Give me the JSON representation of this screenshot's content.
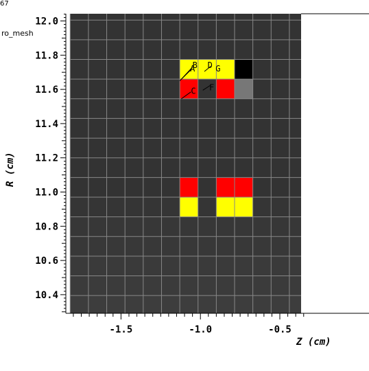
{
  "header": {
    "corner_number": "67",
    "mesh_label": "ro_mesh"
  },
  "chart_data": {
    "type": "heatmap",
    "title": "",
    "xlabel": "Z (cm)",
    "ylabel": "R (cm)",
    "xlim": [
      -1.835,
      -0.325
    ],
    "ylim": [
      10.28,
      12.05
    ],
    "x_ticks": [
      -1.5,
      -1.0,
      -0.5
    ],
    "x_tick_labels": [
      "-1.5",
      "-1.0",
      "-0.5"
    ],
    "y_ticks": [
      10.4,
      10.6,
      10.8,
      11.0,
      11.2,
      11.4,
      11.6,
      11.8,
      12.0
    ],
    "y_tick_labels": [
      "10.4",
      "10.6",
      "10.8",
      "11.0",
      "11.2",
      "11.4",
      "11.6",
      "11.8",
      "12.0"
    ],
    "mesh": {
      "z_edges": [
        -1.82,
        -1.705,
        -1.59,
        -1.475,
        -1.36,
        -1.245,
        -1.13,
        -1.015,
        -0.9,
        -0.785,
        -0.67,
        -0.555,
        -0.44
      ],
      "r_edges": [
        10.28,
        10.395,
        10.51,
        10.625,
        10.74,
        10.855,
        10.97,
        11.085,
        11.2,
        11.315,
        11.43,
        11.545,
        11.66,
        11.775,
        11.89,
        12.005,
        12.12
      ],
      "background_color": "#333333",
      "grid": true,
      "grid_color": "#888888"
    },
    "cells": [
      {
        "z": [
          -1.13,
          -1.015
        ],
        "r": [
          11.66,
          11.775
        ],
        "color": "#ffff00"
      },
      {
        "z": [
          -1.015,
          -0.9
        ],
        "r": [
          11.66,
          11.775
        ],
        "color": "#ffff00"
      },
      {
        "z": [
          -0.9,
          -0.785
        ],
        "r": [
          11.66,
          11.775
        ],
        "color": "#ffff00"
      },
      {
        "z": [
          -0.785,
          -0.67
        ],
        "r": [
          11.66,
          11.775
        ],
        "color": "#000000"
      },
      {
        "z": [
          -1.13,
          -1.015
        ],
        "r": [
          11.545,
          11.66
        ],
        "color": "#ff0000"
      },
      {
        "z": [
          -0.9,
          -0.785
        ],
        "r": [
          11.545,
          11.66
        ],
        "color": "#ff0000"
      },
      {
        "z": [
          -0.785,
          -0.67
        ],
        "r": [
          11.545,
          11.66
        ],
        "color": "#777777"
      },
      {
        "z": [
          -1.13,
          -1.015
        ],
        "r": [
          10.97,
          11.085
        ],
        "color": "#ff0000"
      },
      {
        "z": [
          -0.9,
          -0.785
        ],
        "r": [
          10.97,
          11.085
        ],
        "color": "#ff0000"
      },
      {
        "z": [
          -0.785,
          -0.67
        ],
        "r": [
          10.97,
          11.085
        ],
        "color": "#ff0000"
      },
      {
        "z": [
          -1.13,
          -1.015
        ],
        "r": [
          10.855,
          10.97
        ],
        "color": "#ffff00"
      },
      {
        "z": [
          -0.9,
          -0.785
        ],
        "r": [
          10.855,
          10.97
        ],
        "color": "#ffff00"
      },
      {
        "z": [
          -0.785,
          -0.67
        ],
        "r": [
          10.855,
          10.97
        ],
        "color": "#ffff00"
      }
    ],
    "annotations": [
      {
        "text": "B",
        "z": -1.05,
        "r": 11.725
      },
      {
        "text": "D",
        "z": -0.955,
        "r": 11.725
      },
      {
        "text": "A",
        "z": -1.065,
        "r": 11.705
      },
      {
        "text": "G",
        "z": -0.905,
        "r": 11.705
      },
      {
        "text": "C",
        "z": -1.06,
        "r": 11.575
      },
      {
        "text": "F",
        "z": -0.945,
        "r": 11.595
      }
    ],
    "annotation_leaders": [
      {
        "from": [
          -1.13,
          11.65
        ],
        "to": [
          -1.06,
          11.715
        ]
      },
      {
        "from": [
          -1.12,
          11.66
        ],
        "to": [
          -1.05,
          11.73
        ]
      },
      {
        "from": [
          -1.12,
          11.545
        ],
        "to": [
          -1.06,
          11.585
        ]
      },
      {
        "from": [
          -0.985,
          11.595
        ],
        "to": [
          -0.935,
          11.625
        ]
      },
      {
        "from": [
          -0.975,
          11.705
        ],
        "to": [
          -0.935,
          11.735
        ]
      }
    ]
  }
}
